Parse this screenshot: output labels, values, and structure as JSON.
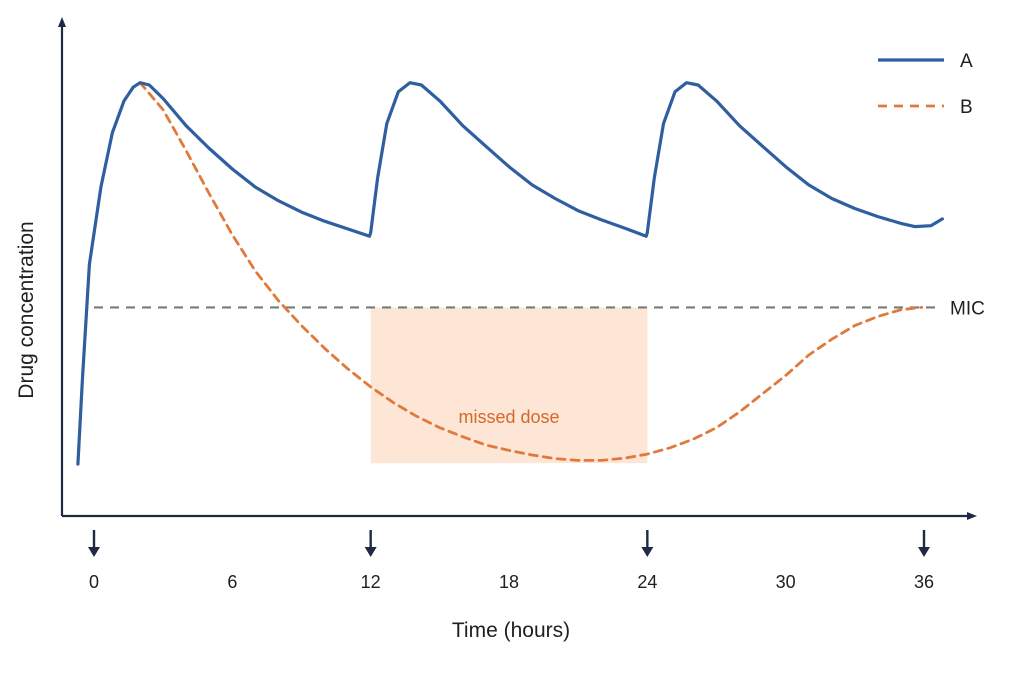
{
  "chart_data": {
    "type": "line",
    "xlabel": "Time (hours)",
    "ylabel": "Drug concentration",
    "xlim": [
      0,
      36
    ],
    "ylim": [
      0,
      100
    ],
    "x_ticks": [
      "0",
      "6",
      "12",
      "18",
      "24",
      "30",
      "36"
    ],
    "dose_times": [
      0,
      12,
      24,
      36
    ],
    "reference_line": {
      "label": "MIC",
      "value": 45.5
    },
    "shaded_region": {
      "label": "missed dose",
      "x_start": 12,
      "x_end": 24,
      "y_top": 45.5,
      "color": "#fde6d6",
      "label_color": "#d4692a"
    },
    "legend_position": "top-right",
    "grid": false,
    "series": [
      {
        "name": "A",
        "color": "#2f5fa0",
        "style": "solid",
        "points": [
          [
            -0.7,
            11
          ],
          [
            -0.5,
            30
          ],
          [
            -0.2,
            55
          ],
          [
            0.3,
            72
          ],
          [
            0.8,
            84
          ],
          [
            1.3,
            91
          ],
          [
            1.7,
            94
          ],
          [
            2.0,
            95
          ],
          [
            2.4,
            94.5
          ],
          [
            3,
            91.5
          ],
          [
            4,
            85.5
          ],
          [
            5,
            80.5
          ],
          [
            6,
            76
          ],
          [
            7,
            72
          ],
          [
            8,
            69
          ],
          [
            9,
            66.5
          ],
          [
            10,
            64.5
          ],
          [
            11,
            62.8
          ],
          [
            11.95,
            61.2
          ],
          [
            12.0,
            62
          ],
          [
            12.3,
            74
          ],
          [
            12.7,
            86
          ],
          [
            13.2,
            93
          ],
          [
            13.7,
            95
          ],
          [
            14.2,
            94.5
          ],
          [
            15,
            91
          ],
          [
            16,
            85.5
          ],
          [
            17,
            81
          ],
          [
            18,
            76.5
          ],
          [
            19,
            72.5
          ],
          [
            20,
            69.5
          ],
          [
            21,
            66.8
          ],
          [
            22,
            64.8
          ],
          [
            23,
            63
          ],
          [
            23.95,
            61.2
          ],
          [
            24.0,
            62
          ],
          [
            24.3,
            74
          ],
          [
            24.7,
            86
          ],
          [
            25.2,
            93
          ],
          [
            25.7,
            95
          ],
          [
            26.2,
            94.5
          ],
          [
            27,
            91
          ],
          [
            28,
            85.5
          ],
          [
            29,
            81
          ],
          [
            30,
            76.5
          ],
          [
            31,
            72.5
          ],
          [
            32,
            69.5
          ],
          [
            33,
            67.3
          ],
          [
            34,
            65.5
          ],
          [
            35,
            64
          ],
          [
            35.6,
            63.3
          ],
          [
            36.3,
            63.5
          ],
          [
            36.8,
            65
          ]
        ]
      },
      {
        "name": "B",
        "color": "#e07a3c",
        "style": "dashed",
        "points": [
          [
            -0.7,
            11
          ],
          [
            -0.5,
            30
          ],
          [
            -0.2,
            55
          ],
          [
            0.3,
            72
          ],
          [
            0.8,
            84
          ],
          [
            1.3,
            91
          ],
          [
            1.7,
            94
          ],
          [
            2.0,
            95
          ],
          [
            3,
            89
          ],
          [
            4,
            80
          ],
          [
            5,
            70.5
          ],
          [
            6,
            61.5
          ],
          [
            7,
            53.5
          ],
          [
            8,
            47
          ],
          [
            9,
            41.5
          ],
          [
            10,
            36.5
          ],
          [
            11,
            32
          ],
          [
            12,
            28
          ],
          [
            13,
            24.5
          ],
          [
            14,
            21.5
          ],
          [
            15,
            19
          ],
          [
            16,
            17
          ],
          [
            17,
            15.2
          ],
          [
            18,
            14
          ],
          [
            19,
            13
          ],
          [
            20,
            12.2
          ],
          [
            21,
            11.8
          ],
          [
            22,
            11.8
          ],
          [
            23,
            12.3
          ],
          [
            24,
            13.2
          ],
          [
            25,
            14.6
          ],
          [
            26,
            16.5
          ],
          [
            27,
            19
          ],
          [
            28,
            22.5
          ],
          [
            29,
            26.5
          ],
          [
            30,
            30.5
          ],
          [
            31,
            35
          ],
          [
            32,
            38.5
          ],
          [
            33,
            41.5
          ],
          [
            34,
            43.5
          ],
          [
            35,
            45
          ],
          [
            35.9,
            45.5
          ]
        ]
      }
    ]
  }
}
